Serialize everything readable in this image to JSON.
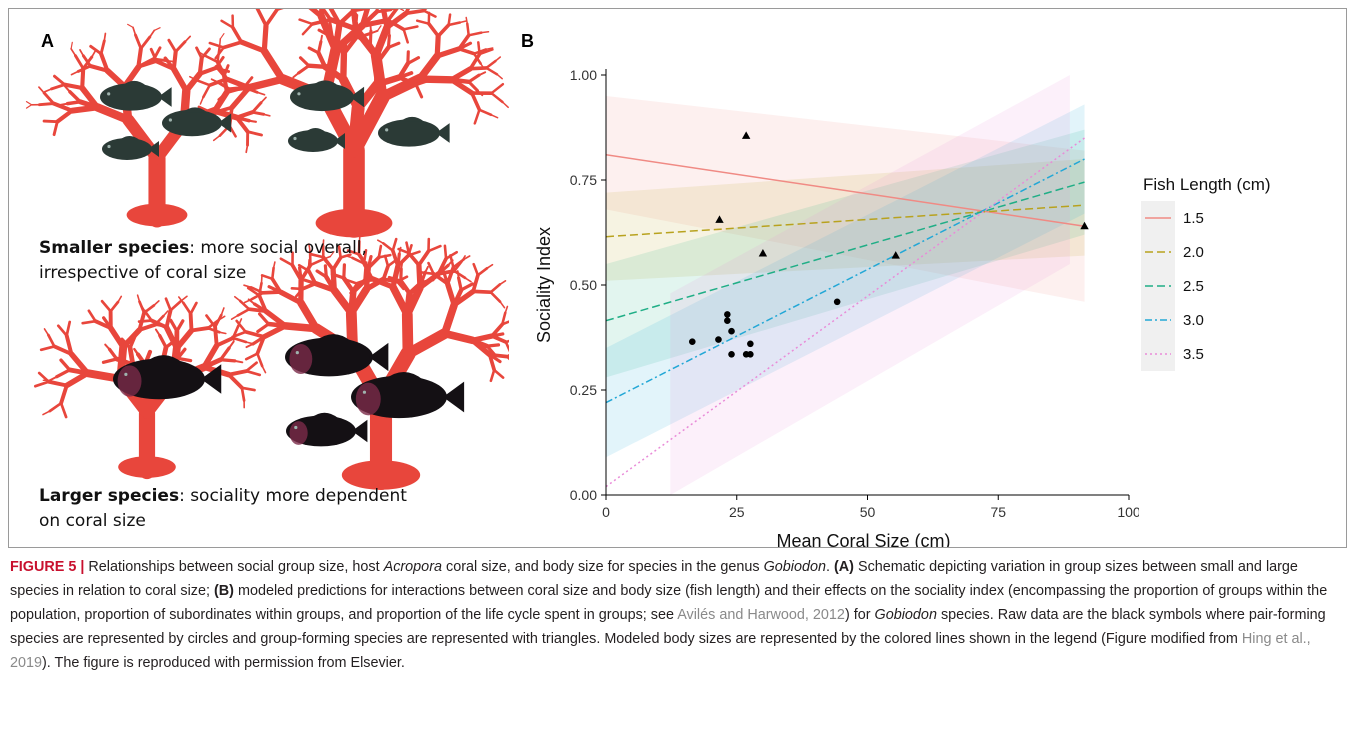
{
  "figure": {
    "panel_a_letter": "A",
    "panel_b_letter": "B",
    "panel_a": {
      "small_species_bold": "Smaller species",
      "small_species_rest": ": more social overall, irrespective of coral size",
      "large_species_bold": "Larger species",
      "large_species_rest": ": sociality more dependent on coral size",
      "colors": {
        "coral": "#e8463c",
        "fish_small": "#2b3a36",
        "fish_large": "#141014"
      }
    },
    "legend": {
      "title": "Fish Length (cm)",
      "entries": [
        {
          "label": "1.5",
          "color": "#f08a84"
        },
        {
          "label": "2.0",
          "color": "#b8a21e"
        },
        {
          "label": "2.5",
          "color": "#1fae86"
        },
        {
          "label": "3.0",
          "color": "#22a7d6"
        },
        {
          "label": "3.5",
          "color": "#e98bd8"
        }
      ]
    }
  },
  "chart_data": {
    "type": "scatter",
    "xlabel": "Mean Coral Size (cm)",
    "ylabel": "Sociality Index",
    "xlim": [
      0,
      100
    ],
    "ylim": [
      0,
      1
    ],
    "x_ticks": [
      "0",
      "25",
      "50",
      "75",
      "100"
    ],
    "y_ticks": [
      "0.00",
      "0.25",
      "0.50",
      "0.75",
      "1.00"
    ],
    "series": [
      {
        "name": "1.5",
        "color": "#f08a84",
        "dash": "solid",
        "line": [
          [
            0,
            0.81
          ],
          [
            91.5,
            0.64
          ]
        ],
        "band_upper": [
          [
            0,
            0.95
          ],
          [
            91.5,
            0.82
          ]
        ],
        "band_lower": [
          [
            0,
            0.68
          ],
          [
            91.5,
            0.46
          ]
        ]
      },
      {
        "name": "2.0",
        "color": "#b8a21e",
        "dash": "dashed",
        "line": [
          [
            0,
            0.615
          ],
          [
            91.5,
            0.69
          ]
        ],
        "band_upper": [
          [
            0,
            0.72
          ],
          [
            91.5,
            0.8
          ]
        ],
        "band_lower": [
          [
            0,
            0.51
          ],
          [
            91.5,
            0.57
          ]
        ]
      },
      {
        "name": "2.5",
        "color": "#1fae86",
        "dash": "dashed",
        "line": [
          [
            0,
            0.415
          ],
          [
            91.5,
            0.745
          ]
        ],
        "band_upper": [
          [
            0,
            0.55
          ],
          [
            91.5,
            0.87
          ]
        ],
        "band_lower": [
          [
            0,
            0.28
          ],
          [
            91.5,
            0.62
          ]
        ]
      },
      {
        "name": "3.0",
        "color": "#22a7d6",
        "dash": "dashdot",
        "line": [
          [
            0,
            0.22
          ],
          [
            91.5,
            0.8
          ]
        ],
        "band_upper": [
          [
            0,
            0.35
          ],
          [
            91.5,
            0.93
          ]
        ],
        "band_lower": [
          [
            0,
            0.09
          ],
          [
            91.5,
            0.67
          ]
        ]
      },
      {
        "name": "3.5",
        "color": "#e98bd8",
        "dash": "dotted",
        "line": [
          [
            0,
            0.02
          ],
          [
            91.5,
            0.85
          ]
        ],
        "band_upper": [
          [
            12.3,
            0.48
          ],
          [
            88.7,
            1.0
          ]
        ],
        "band_lower": [
          [
            12.3,
            0.0
          ],
          [
            88.7,
            0.55
          ]
        ]
      }
    ],
    "points": [
      {
        "x": 16.5,
        "y": 0.365,
        "shape": "circle"
      },
      {
        "x": 21.5,
        "y": 0.37,
        "shape": "circle"
      },
      {
        "x": 23.2,
        "y": 0.43,
        "shape": "circle"
      },
      {
        "x": 23.2,
        "y": 0.415,
        "shape": "circle"
      },
      {
        "x": 24.0,
        "y": 0.39,
        "shape": "circle"
      },
      {
        "x": 24.0,
        "y": 0.335,
        "shape": "circle"
      },
      {
        "x": 26.8,
        "y": 0.335,
        "shape": "circle"
      },
      {
        "x": 27.6,
        "y": 0.36,
        "shape": "circle"
      },
      {
        "x": 27.6,
        "y": 0.335,
        "shape": "circle"
      },
      {
        "x": 44.2,
        "y": 0.46,
        "shape": "circle"
      },
      {
        "x": 21.7,
        "y": 0.655,
        "shape": "triangle"
      },
      {
        "x": 26.8,
        "y": 0.855,
        "shape": "triangle"
      },
      {
        "x": 30.0,
        "y": 0.575,
        "shape": "triangle"
      },
      {
        "x": 55.4,
        "y": 0.57,
        "shape": "triangle"
      },
      {
        "x": 91.5,
        "y": 0.64,
        "shape": "triangle"
      }
    ]
  },
  "caption": {
    "label": "FIGURE 5 |",
    "seg1": " Relationships between social group size, host ",
    "genus1": "Acropora",
    "seg2": " coral size, and body size for species in the genus ",
    "genus2": "Gobiodon",
    "seg3": ". ",
    "part_a": "(A)",
    "seg4": " Schematic depicting variation in group sizes between small and large species in relation to coral size; ",
    "part_b": "(B)",
    "seg5": " modeled predictions for interactions between coral size and body size (fish length) and their effects on the sociality index (encompassing the proportion of groups within the population, proportion of subordinates within groups, and proportion of the life cycle spent in groups; see ",
    "ref1": "Avilés and Harwood, 2012",
    "seg6": ") for ",
    "genus3": "Gobiodon",
    "seg7": " species. Raw data are the black symbols where pair-forming species are represented by circles and group-forming species are represented with triangles. Modeled body sizes are represented by the colored lines shown in the legend (Figure modified from ",
    "ref2": "Hing et al., 2019",
    "seg8": "). The figure is reproduced with permission from Elsevier."
  }
}
